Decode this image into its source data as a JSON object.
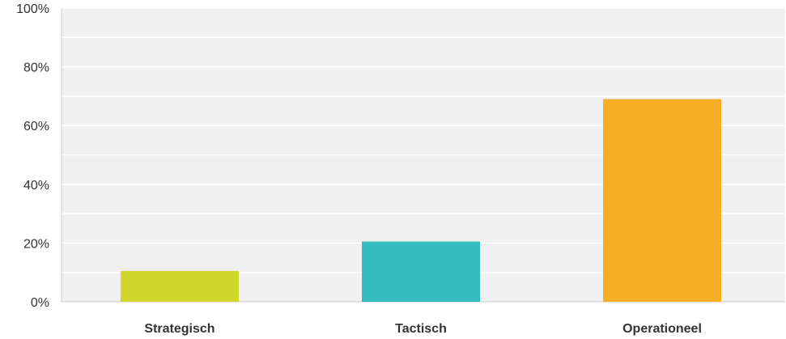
{
  "chart_data": {
    "type": "bar",
    "categories": [
      "Strategisch",
      "Tactisch",
      "Operationeel"
    ],
    "values": [
      10.5,
      20.5,
      69
    ],
    "colors": [
      "#d1d62a",
      "#34bdc0",
      "#f6ae23"
    ],
    "ylim": [
      0,
      100
    ],
    "yticks": [
      "0%",
      "20%",
      "40%",
      "60%",
      "80%",
      "100%"
    ],
    "ytick_values": [
      0,
      20,
      40,
      60,
      80,
      100
    ],
    "grid": true,
    "plot_background": "#f0f0f0",
    "grid_color": "#ffffff",
    "title": "",
    "xlabel": "",
    "ylabel": ""
  }
}
